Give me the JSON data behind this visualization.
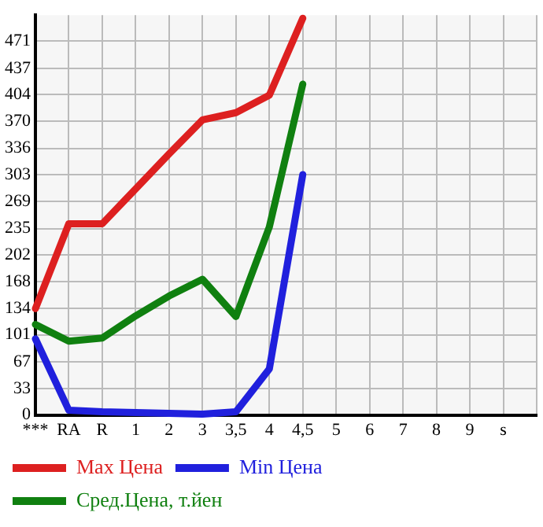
{
  "chart_data": {
    "type": "line",
    "categories": [
      "***",
      "RA",
      "R",
      "1",
      "2",
      "3",
      "3,5",
      "4",
      "4,5",
      "5",
      "6",
      "7",
      "8",
      "9",
      "s"
    ],
    "series": [
      {
        "name": "Max Цена",
        "color": "#dd2020",
        "values": [
          134,
          241,
          241,
          285,
          329,
          372,
          381,
          403,
          500,
          null,
          null,
          null,
          null,
          null,
          null
        ]
      },
      {
        "name": "Min Цена",
        "color": "#2020dd",
        "values": [
          96,
          6,
          4,
          3,
          2,
          1,
          4,
          58,
          303,
          null,
          null,
          null,
          null,
          null,
          null
        ]
      },
      {
        "name": "Сред.Цена, т.йен",
        "color": "#108010",
        "values": [
          114,
          93,
          97,
          125,
          150,
          171,
          124,
          237,
          417,
          null,
          null,
          null,
          null,
          null,
          null
        ]
      }
    ],
    "ylim": [
      0,
      504
    ],
    "yticks": [
      0,
      33,
      67,
      101,
      134,
      168,
      202,
      235,
      269,
      303,
      336,
      370,
      404,
      437,
      471
    ],
    "grid": true,
    "legend": "bottom",
    "marker": "none",
    "line_style": "solid"
  }
}
